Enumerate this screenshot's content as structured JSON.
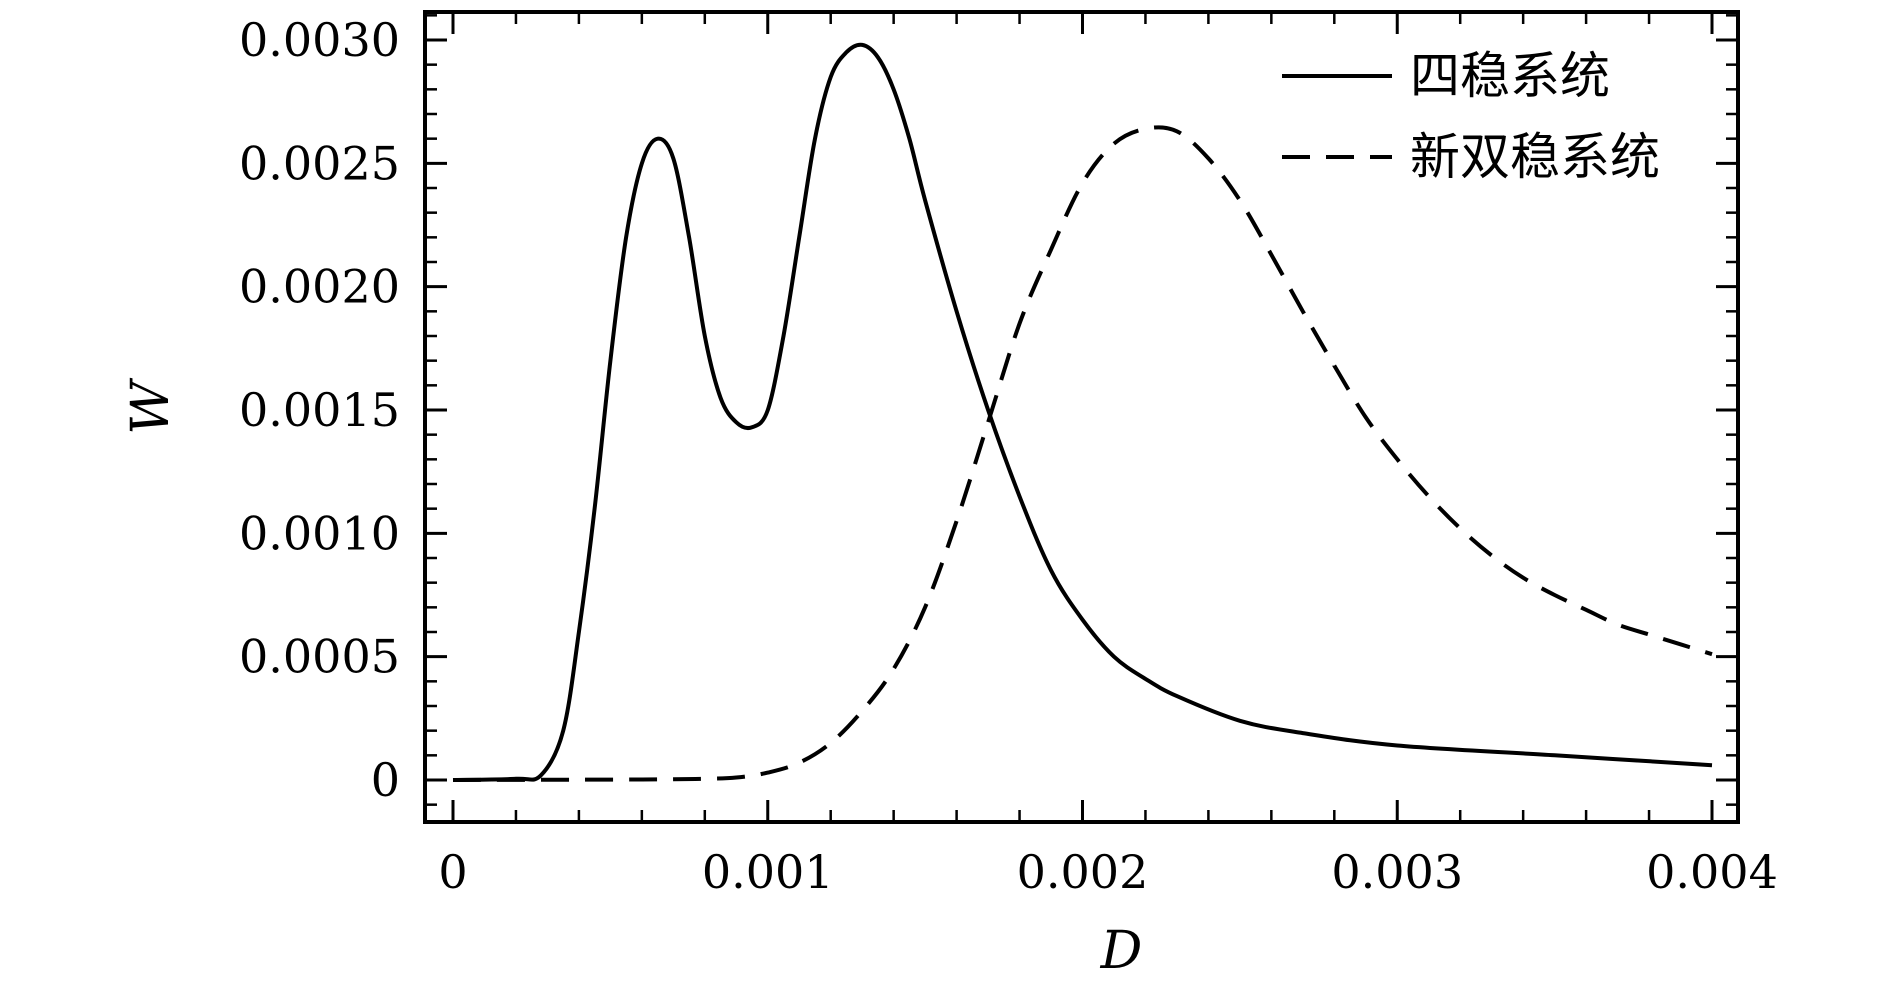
{
  "chart_data": {
    "type": "line",
    "xlabel": "D",
    "ylabel": "W",
    "xlim": [
      0,
      0.004
    ],
    "ylim": [
      0,
      0.003
    ],
    "x_ticks": [
      {
        "value": 0,
        "label": "0"
      },
      {
        "value": 0.001,
        "label": "0.001"
      },
      {
        "value": 0.002,
        "label": "0.002"
      },
      {
        "value": 0.003,
        "label": "0.003"
      },
      {
        "value": 0.004,
        "label": "0.004"
      }
    ],
    "y_ticks": [
      {
        "value": 0,
        "label": "0"
      },
      {
        "value": 0.0005,
        "label": "0.0005"
      },
      {
        "value": 0.001,
        "label": "0.0010"
      },
      {
        "value": 0.0015,
        "label": "0.0015"
      },
      {
        "value": 0.002,
        "label": "0.0020"
      },
      {
        "value": 0.0025,
        "label": "0.0025"
      },
      {
        "value": 0.003,
        "label": "0.0030"
      }
    ],
    "legend_position": "top-right",
    "series": [
      {
        "name": "四稳系统",
        "style": "solid",
        "color": "#000000",
        "points": [
          [
            0,
            0
          ],
          [
            0.0002,
            5e-06
          ],
          [
            0.00028,
            2e-05
          ],
          [
            0.00035,
            0.0002
          ],
          [
            0.0004,
            0.0006
          ],
          [
            0.00045,
            0.0011
          ],
          [
            0.0005,
            0.0017
          ],
          [
            0.00055,
            0.0022
          ],
          [
            0.0006,
            0.0025
          ],
          [
            0.00065,
            0.0026
          ],
          [
            0.0007,
            0.00252
          ],
          [
            0.00075,
            0.0022
          ],
          [
            0.0008,
            0.0018
          ],
          [
            0.00085,
            0.00155
          ],
          [
            0.0009,
            0.00145
          ],
          [
            0.00095,
            0.00143
          ],
          [
            0.001,
            0.0015
          ],
          [
            0.00105,
            0.0018
          ],
          [
            0.0011,
            0.0022
          ],
          [
            0.00115,
            0.0026
          ],
          [
            0.0012,
            0.00285
          ],
          [
            0.00125,
            0.00295
          ],
          [
            0.0013,
            0.00298
          ],
          [
            0.00135,
            0.00293
          ],
          [
            0.0014,
            0.0028
          ],
          [
            0.00145,
            0.0026
          ],
          [
            0.0015,
            0.00235
          ],
          [
            0.0016,
            0.0019
          ],
          [
            0.0017,
            0.0015
          ],
          [
            0.0018,
            0.00115
          ],
          [
            0.0019,
            0.00085
          ],
          [
            0.002,
            0.00065
          ],
          [
            0.0021,
            0.0005
          ],
          [
            0.0022,
            0.00041
          ],
          [
            0.0023,
            0.00034
          ],
          [
            0.0025,
            0.00024
          ],
          [
            0.0027,
            0.00019
          ],
          [
            0.003,
            0.00014
          ],
          [
            0.0035,
            0.0001
          ],
          [
            0.004,
            6e-05
          ]
        ]
      },
      {
        "name": "新双稳系统",
        "style": "dashed",
        "color": "#000000",
        "points": [
          [
            0,
            0
          ],
          [
            0.0006,
            2e-06
          ],
          [
            0.0008,
            5e-06
          ],
          [
            0.0009,
            1e-05
          ],
          [
            0.001,
            3e-05
          ],
          [
            0.0011,
            7e-05
          ],
          [
            0.0012,
            0.00015
          ],
          [
            0.0013,
            0.00028
          ],
          [
            0.0014,
            0.00045
          ],
          [
            0.0015,
            0.0007
          ],
          [
            0.0016,
            0.00105
          ],
          [
            0.0017,
            0.00145
          ],
          [
            0.0018,
            0.00185
          ],
          [
            0.0019,
            0.00215
          ],
          [
            0.002,
            0.00242
          ],
          [
            0.0021,
            0.00258
          ],
          [
            0.0022,
            0.00264
          ],
          [
            0.0023,
            0.00263
          ],
          [
            0.0024,
            0.00252
          ],
          [
            0.0025,
            0.00235
          ],
          [
            0.0026,
            0.00213
          ],
          [
            0.0027,
            0.0019
          ],
          [
            0.0028,
            0.00168
          ],
          [
            0.0029,
            0.00147
          ],
          [
            0.003,
            0.0013
          ],
          [
            0.0031,
            0.00115
          ],
          [
            0.0032,
            0.00102
          ],
          [
            0.0033,
            0.00091
          ],
          [
            0.0034,
            0.00082
          ],
          [
            0.0035,
            0.00075
          ],
          [
            0.0036,
            0.00069
          ],
          [
            0.0037,
            0.00063
          ],
          [
            0.0038,
            0.00059
          ],
          [
            0.0039,
            0.00055
          ],
          [
            0.004,
            0.00051
          ]
        ]
      }
    ]
  }
}
